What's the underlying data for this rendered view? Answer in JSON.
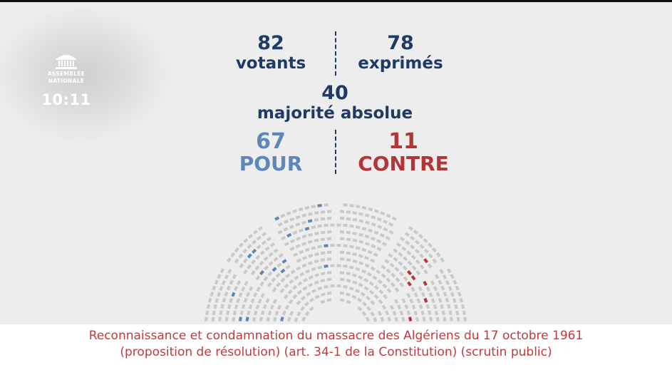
{
  "logo": {
    "line1": "ASSEMBLÉE",
    "line2": "NATIONALE"
  },
  "clock": "10:11",
  "votants": {
    "value": "82",
    "label": "votants"
  },
  "exprimes": {
    "value": "78",
    "label": "exprimés"
  },
  "majorite": {
    "value": "40",
    "label": "majorité absolue"
  },
  "pour": {
    "value": "67",
    "label": "POUR"
  },
  "contre": {
    "value": "11",
    "label": "CONTRE"
  },
  "caption": {
    "line1": "Reconnaissance et condamnation du massacre des Algériens du 17 octobre 1961",
    "line2": "(proposition de résolution) (art. 34-1 de la Constitution) (scrutin public)"
  },
  "colors": {
    "navy": "#1f3a64",
    "pour": "#5e86b9",
    "contre": "#b2353a",
    "caption": "#c03a3e",
    "seat": "#c9c9c9"
  }
}
